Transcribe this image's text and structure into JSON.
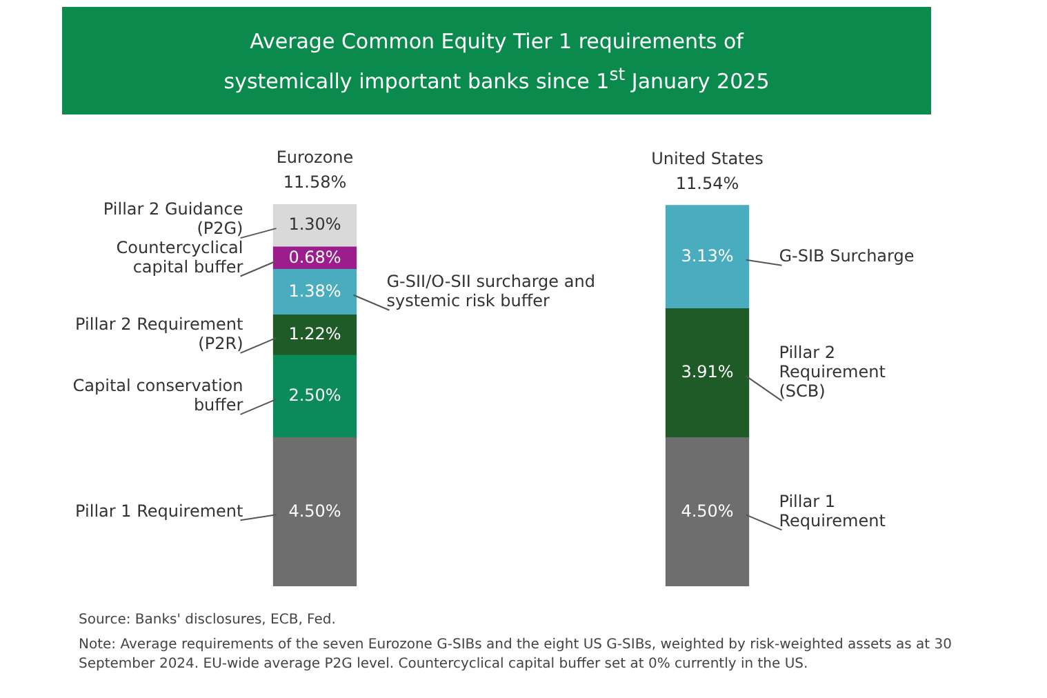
{
  "chart_data": {
    "type": "bar",
    "stacked": true,
    "title": "Average Common Equity Tier 1 requirements of systemically important banks since 1$^{st}$ January 2025",
    "categories": [
      "Eurozone",
      "United States"
    ],
    "totals": [
      "11.58%",
      "11.54%"
    ],
    "series": [
      {
        "name": "Pillar 1 Requirement",
        "color": "#6e6e6e",
        "values": [
          4.5,
          4.5
        ],
        "value_labels": [
          "4.50%",
          "4.50%"
        ]
      },
      {
        "name": "Capital conservation buffer",
        "color": "#0b8a5c",
        "values": [
          2.5,
          null
        ],
        "value_labels": [
          "2.50%",
          null
        ]
      },
      {
        "name": "Pillar 2 Requirement (P2R)",
        "color": "#1e5b27",
        "values": [
          1.22,
          null
        ],
        "value_labels": [
          "1.22%",
          null
        ]
      },
      {
        "name": "Pillar 2 Requirement (SCB)",
        "color": "#1e5b27",
        "values": [
          null,
          3.91
        ],
        "value_labels": [
          null,
          "3.91%"
        ]
      },
      {
        "name": "G-SII/O-SII surcharge and systemic risk buffer",
        "color": "#4aacbf",
        "values": [
          1.38,
          null
        ],
        "value_labels": [
          "1.38%",
          null
        ]
      },
      {
        "name": "G-SIB Surcharge",
        "color": "#4aacbf",
        "values": [
          null,
          3.13
        ],
        "value_labels": [
          null,
          "3.13%"
        ]
      },
      {
        "name": "Countercyclical capital buffer",
        "color": "#9b1e8c",
        "values": [
          0.68,
          null
        ],
        "value_labels": [
          "0.68%",
          null
        ]
      },
      {
        "name": "Pillar 2 Guidance (P2G)",
        "color": "#d9d9d9",
        "values": [
          1.3,
          null
        ],
        "value_labels": [
          "1.30%",
          null
        ]
      }
    ],
    "annotations": [
      "Source: Banks' disclosures, ECB, Fed.",
      "Note: Average requirements of the seven Eurozone G-SIBs and the eight US G-SIBs, weighted by risk-weighted assets as at 30 September 2024. EU-wide average P2G level. Countercyclical capital buffer set at 0% currently in the US."
    ]
  }
}
